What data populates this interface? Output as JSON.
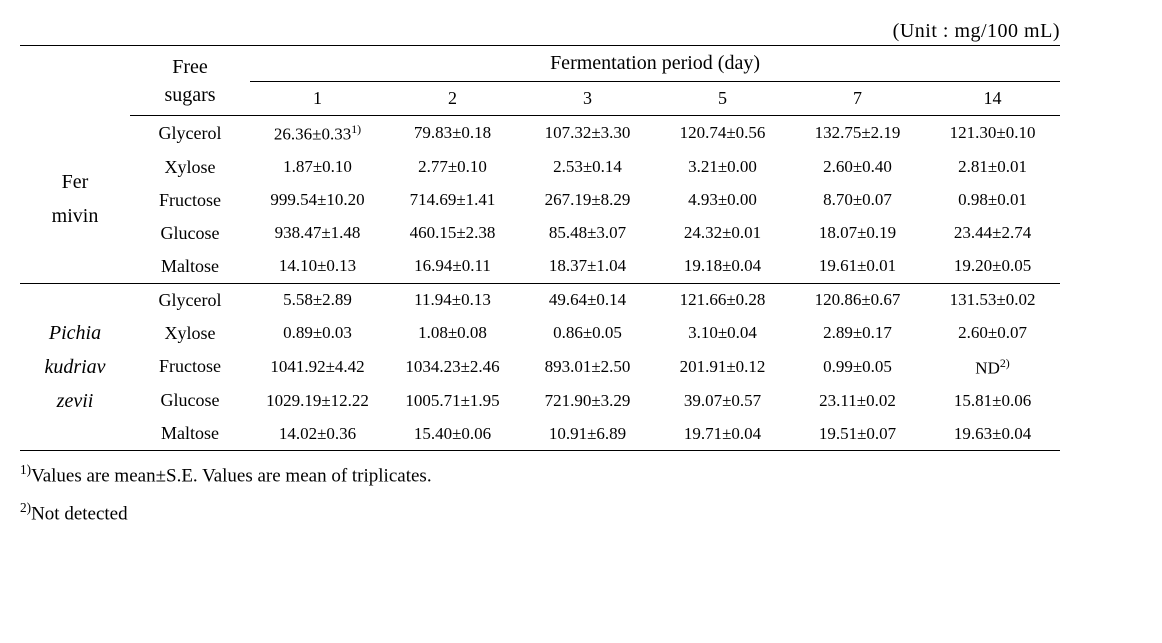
{
  "unit_label": "(Unit : mg/100 mL)",
  "headers": {
    "free_sugars_line1": "Free",
    "free_sugars_line2": "sugars",
    "period_label": "Fermentation period (day)",
    "days": {
      "d1": "1",
      "d2": "2",
      "d3": "3",
      "d5": "5",
      "d7": "7",
      "d14": "14"
    }
  },
  "strains": {
    "fermivin_line1": "Fer",
    "fermivin_line2": "mivin",
    "pichia_line1": "Pichia",
    "pichia_line2": "kudriav",
    "pichia_line3": "zevii"
  },
  "sugars": {
    "glycerol": "Glycerol",
    "xylose": "Xylose",
    "fructose": "Fructose",
    "glucose": "Glucose",
    "maltose": "Maltose"
  },
  "fermivin": {
    "glycerol": {
      "d1": "26.36±0.33",
      "d1_sup": "1)",
      "d2": "79.83±0.18",
      "d3": "107.32±3.30",
      "d5": "120.74±0.56",
      "d7": "132.75±2.19",
      "d14": "121.30±0.10"
    },
    "xylose": {
      "d1": "1.87±0.10",
      "d2": "2.77±0.10",
      "d3": "2.53±0.14",
      "d5": "3.21±0.00",
      "d7": "2.60±0.40",
      "d14": "2.81±0.01"
    },
    "fructose": {
      "d1": "999.54±10.20",
      "d2": "714.69±1.41",
      "d3": "267.19±8.29",
      "d5": "4.93±0.00",
      "d7": "8.70±0.07",
      "d14": "0.98±0.01"
    },
    "glucose": {
      "d1": "938.47±1.48",
      "d2": "460.15±2.38",
      "d3": "85.48±3.07",
      "d5": "24.32±0.01",
      "d7": "18.07±0.19",
      "d14": "23.44±2.74"
    },
    "maltose": {
      "d1": "14.10±0.13",
      "d2": "16.94±0.11",
      "d3": "18.37±1.04",
      "d5": "19.18±0.04",
      "d7": "19.61±0.01",
      "d14": "19.20±0.05"
    }
  },
  "pichia": {
    "glycerol": {
      "d1": "5.58±2.89",
      "d2": "11.94±0.13",
      "d3": "49.64±0.14",
      "d5": "121.66±0.28",
      "d7": "120.86±0.67",
      "d14": "131.53±0.02"
    },
    "xylose": {
      "d1": "0.89±0.03",
      "d2": "1.08±0.08",
      "d3": "0.86±0.05",
      "d5": "3.10±0.04",
      "d7": "2.89±0.17",
      "d14": "2.60±0.07"
    },
    "fructose": {
      "d1": "1041.92±4.42",
      "d2": "1034.23±2.46",
      "d3": "893.01±2.50",
      "d5": "201.91±0.12",
      "d7": "0.99±0.05",
      "d14": "ND",
      "d14_sup": "2)"
    },
    "glucose": {
      "d1": "1029.19±12.22",
      "d2": "1005.71±1.95",
      "d3": "721.90±3.29",
      "d5": "39.07±0.57",
      "d7": "23.11±0.02",
      "d14": "15.81±0.06"
    },
    "maltose": {
      "d1": "14.02±0.36",
      "d2": "15.40±0.06",
      "d3": "10.91±6.89",
      "d5": "19.71±0.04",
      "d7": "19.51±0.07",
      "d14": "19.63±0.04"
    }
  },
  "footnotes": {
    "f1_sup": "1)",
    "f1_text": "Values are mean±S.E. Values are mean of triplicates.",
    "f2_sup": "2)",
    "f2_text": "Not detected"
  }
}
